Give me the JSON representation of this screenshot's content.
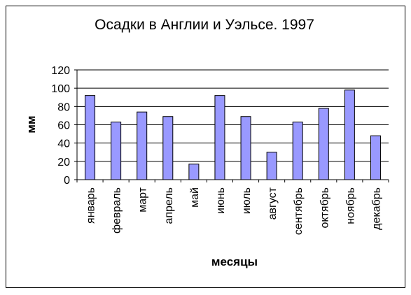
{
  "chart_data": {
    "type": "bar",
    "title": "Осадки в Англии и Уэльсе. 1997",
    "y_label": "мм",
    "x_label": "месяцы",
    "categories": [
      "январь",
      "февраль",
      "март",
      "апрель",
      "май",
      "июнь",
      "июль",
      "август",
      "сентябрь",
      "октябрь",
      "ноябрь",
      "декабрь"
    ],
    "values": [
      92,
      63,
      74,
      69,
      17,
      92,
      69,
      30,
      63,
      78,
      98,
      48
    ],
    "color": "#9999ff",
    "ylim": [
      0,
      120
    ],
    "yticks": [
      0,
      20,
      40,
      60,
      80,
      100,
      120
    ],
    "grid": true
  }
}
